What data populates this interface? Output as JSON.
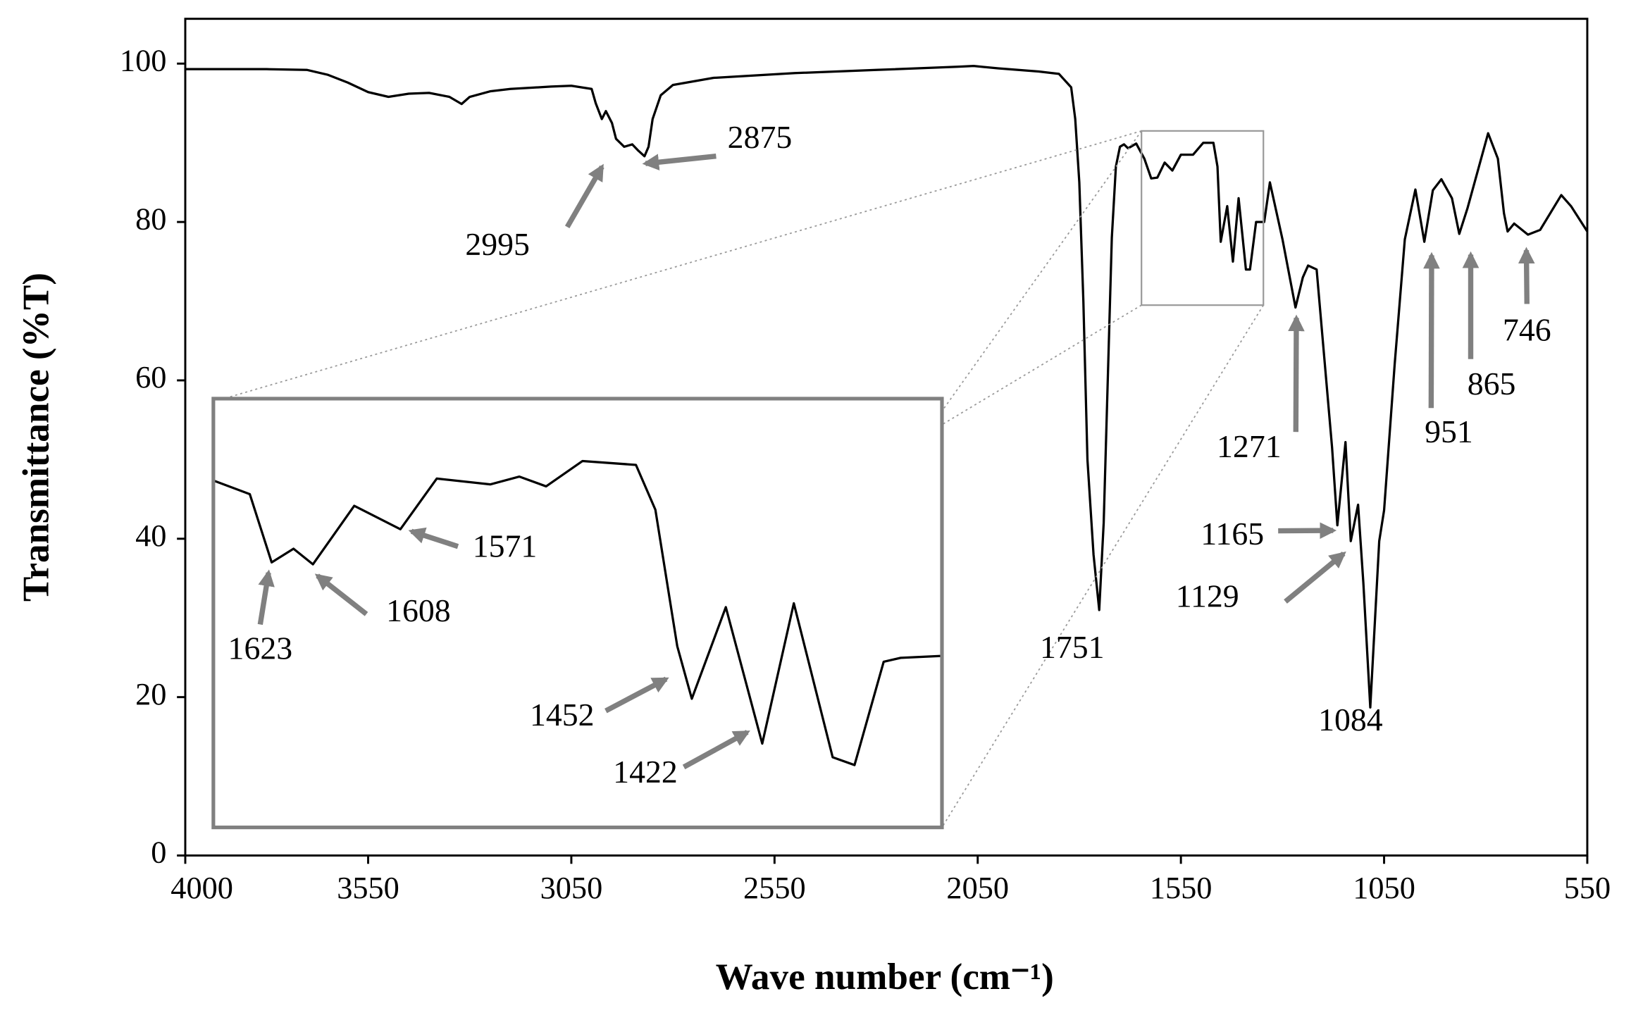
{
  "chart_data": {
    "type": "line",
    "x_label": "Wave number (cm⁻¹)",
    "y_label": "Transmittance (%T)",
    "xlim": [
      4000,
      550
    ],
    "ylim": [
      0,
      105
    ],
    "xticks": [
      4000,
      3550,
      3050,
      2550,
      2050,
      1550,
      1050,
      550
    ],
    "yticks": [
      0,
      20,
      40,
      60,
      80,
      100
    ],
    "color": "#000000",
    "x": [
      4000,
      3800,
      3700,
      3650,
      3600,
      3550,
      3500,
      3450,
      3400,
      3350,
      3320,
      3300,
      3250,
      3200,
      3100,
      3050,
      3000,
      2990,
      2975,
      2965,
      2950,
      2940,
      2920,
      2900,
      2885,
      2870,
      2860,
      2850,
      2830,
      2800,
      2700,
      2500,
      2300,
      2100,
      2060,
      2000,
      1900,
      1850,
      1820,
      1810,
      1800,
      1790,
      1780,
      1765,
      1751,
      1740,
      1730,
      1720,
      1710,
      1700,
      1690,
      1680,
      1660,
      1640,
      1623,
      1608,
      1590,
      1571,
      1550,
      1520,
      1495,
      1470,
      1460,
      1452,
      1436,
      1422,
      1408,
      1390,
      1380,
      1365,
      1345,
      1331,
      1300,
      1268,
      1250,
      1237,
      1216,
      1178,
      1165,
      1145,
      1132,
      1114,
      1101,
      1084,
      1062,
      1050,
      1024,
      999,
      973,
      951,
      930,
      909,
      883,
      865,
      845,
      794,
      770,
      755,
      746,
      730,
      696,
      666,
      614,
      590,
      550
    ],
    "values": [
      99.3,
      99.3,
      99.2,
      98.6,
      97.6,
      96.4,
      95.8,
      96.2,
      96.3,
      95.8,
      94.9,
      95.8,
      96.5,
      96.8,
      97.1,
      97.2,
      96.8,
      95,
      93,
      94,
      92.5,
      90.5,
      89.5,
      89.8,
      89,
      88.3,
      89.5,
      93,
      96,
      97.3,
      98.2,
      98.8,
      99.2,
      99.6,
      99.7,
      99.4,
      99.0,
      98.7,
      97,
      93,
      85,
      70,
      50,
      38,
      31,
      42,
      60,
      78,
      87,
      89.5,
      89.8,
      89.3,
      89.9,
      88,
      85.5,
      85.6,
      87.5,
      86.5,
      88.5,
      88.5,
      90,
      90,
      87,
      77.5,
      82,
      75,
      83,
      74,
      74,
      80,
      80,
      85,
      77.8,
      69.2,
      73,
      74.5,
      74,
      51.5,
      41.7,
      52.2,
      39.7,
      44.3,
      34.4,
      18.7,
      39.7,
      43.6,
      62,
      77.8,
      84.1,
      77.5,
      84,
      85.4,
      83,
      78.5,
      81.7,
      91.2,
      88,
      81.1,
      78.8,
      79.8,
      78.4,
      79,
      83.4,
      82,
      78.8
    ],
    "annotations": [
      {
        "label": "2995",
        "x": 2995,
        "y": 89.6
      },
      {
        "label": "2875",
        "x": 2875,
        "y": 88.3
      },
      {
        "label": "1751",
        "x": 1751,
        "y": 31
      },
      {
        "label": "1271",
        "x": 1271,
        "y": 69.2
      },
      {
        "label": "1165",
        "x": 1165,
        "y": 41.7
      },
      {
        "label": "1129",
        "x": 1129,
        "y": 39.7
      },
      {
        "label": "1084",
        "x": 1084,
        "y": 18.7
      },
      {
        "label": "951",
        "x": 951,
        "y": 77.5
      },
      {
        "label": "865",
        "x": 865,
        "y": 78.5
      },
      {
        "label": "746",
        "x": 746,
        "y": 78.8
      }
    ],
    "inset": {
      "xlim": [
        1647,
        1347
      ],
      "ylim": [
        69.5,
        91.5
      ],
      "x": [
        1647,
        1632,
        1623,
        1614,
        1606,
        1589,
        1570,
        1555,
        1533,
        1521,
        1510,
        1495,
        1473,
        1465,
        1456,
        1450,
        1436,
        1421,
        1408,
        1392,
        1383,
        1371,
        1364,
        1347
      ],
      "values": [
        87.3,
        86.6,
        83.1,
        83.8,
        83.0,
        86.0,
        84.8,
        87.4,
        87.1,
        87.5,
        87.0,
        88.3,
        88.1,
        85.8,
        78.8,
        76.1,
        80.8,
        73.8,
        81.0,
        73.1,
        72.7,
        78.0,
        78.2,
        78.3
      ],
      "annotations": [
        {
          "label": "1623",
          "x": 1623,
          "y": 83.1
        },
        {
          "label": "1608",
          "x": 1608,
          "y": 83.0
        },
        {
          "label": "1571",
          "x": 1571,
          "y": 84.8
        },
        {
          "label": "1452",
          "x": 1452,
          "y": 76.1
        },
        {
          "label": "1422",
          "x": 1422,
          "y": 73.8
        }
      ]
    }
  }
}
